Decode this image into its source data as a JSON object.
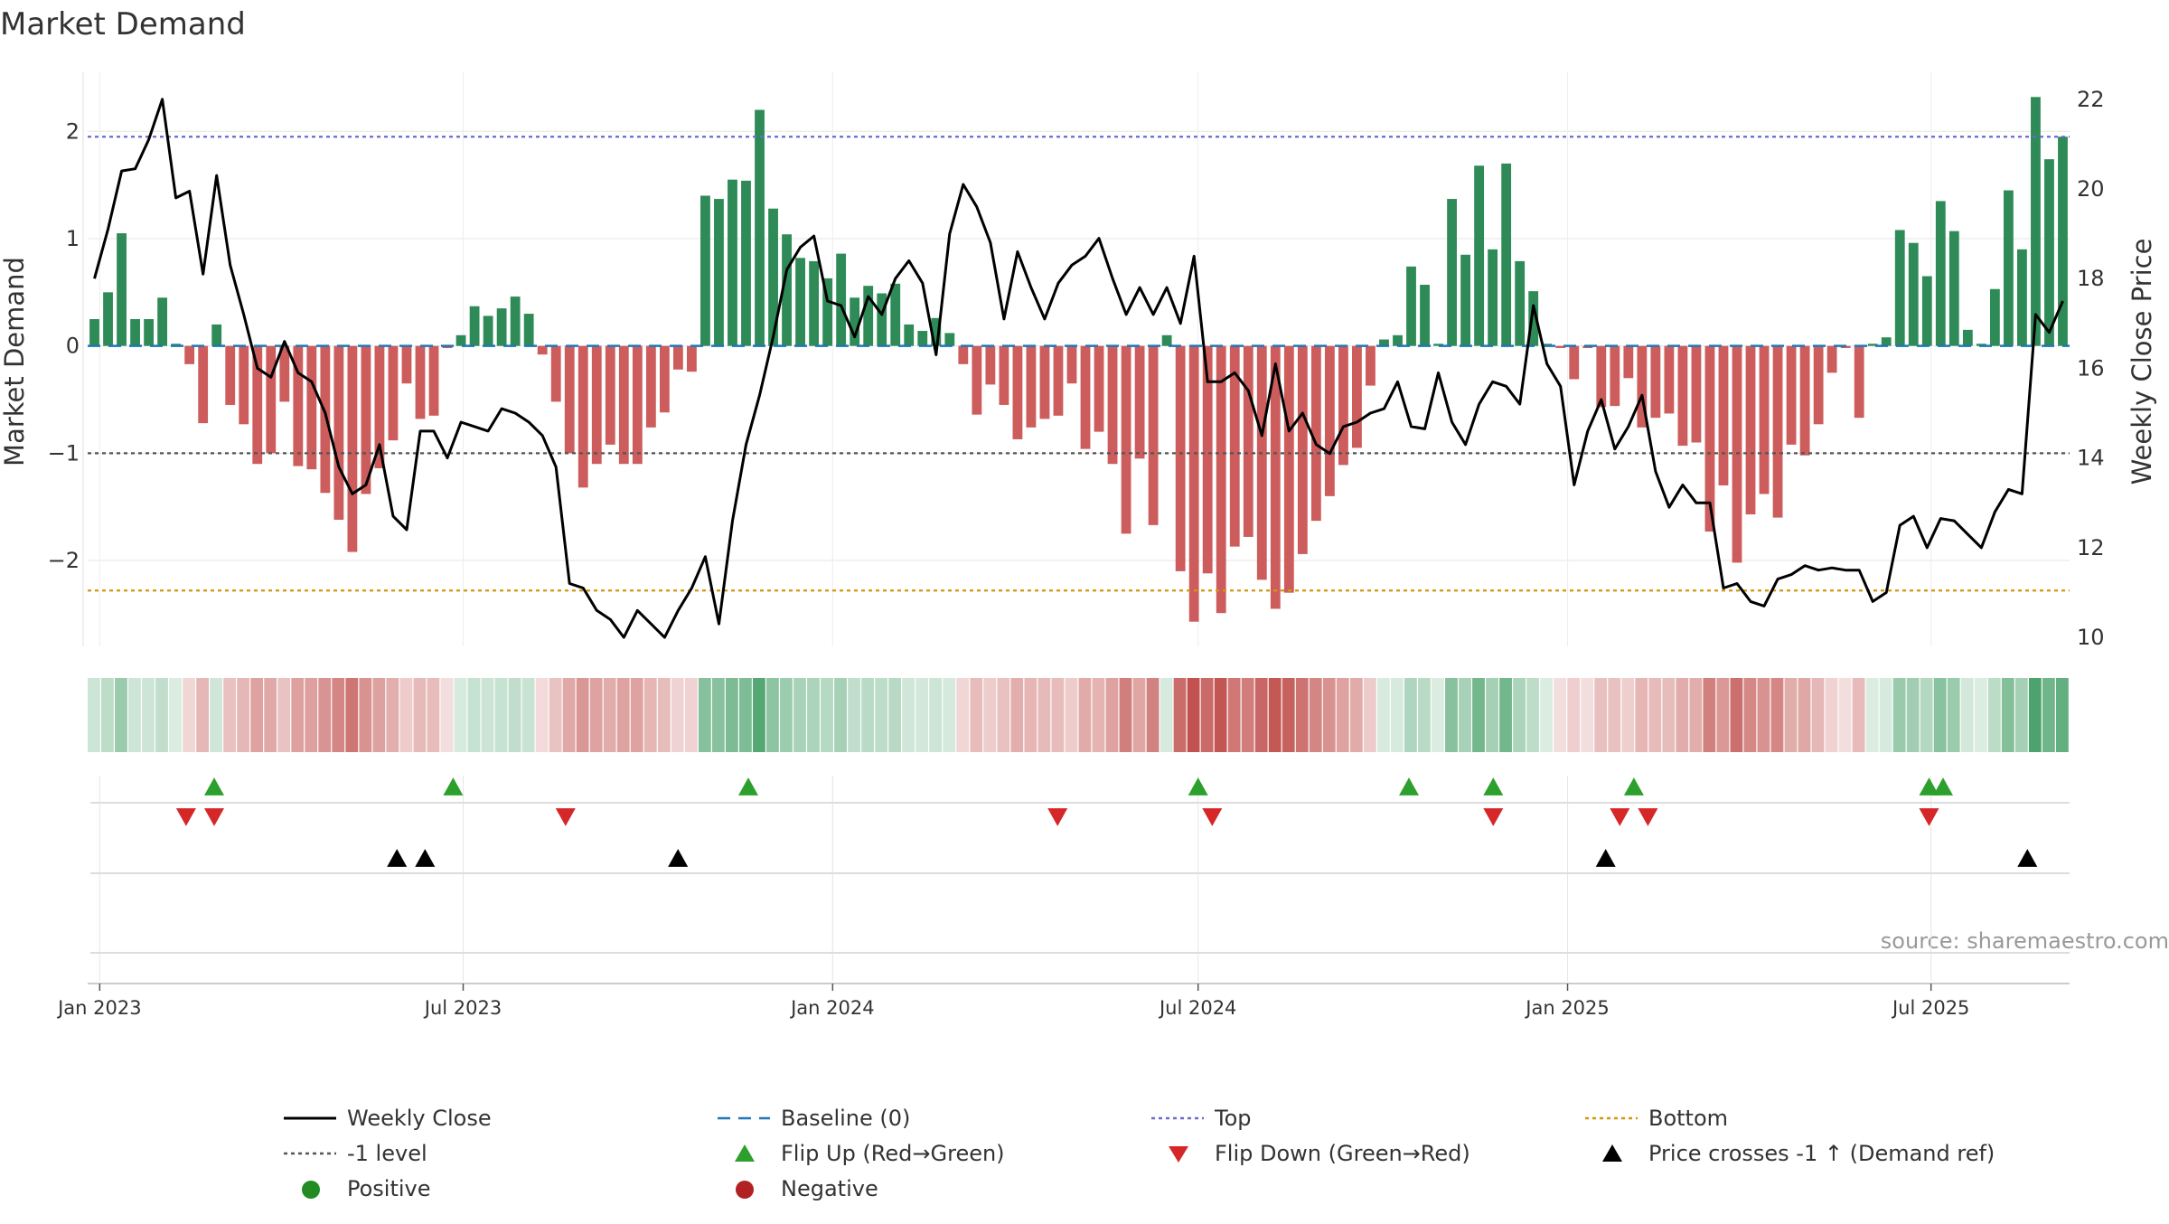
{
  "chart_data": {
    "type": "bar",
    "title": "Market Demand",
    "ylabel_left": "Market Demand",
    "ylabel_right": "Weekly Close Price",
    "source": "source: sharemaestro.com",
    "x_start": "2022-12-26",
    "x_end": "2025-09-08",
    "x_ticks": [
      {
        "date": "2023-01-01",
        "label": "Jan 2023"
      },
      {
        "date": "2023-07-01",
        "label": "Jul 2023"
      },
      {
        "date": "2024-01-01",
        "label": "Jan 2024"
      },
      {
        "date": "2024-07-01",
        "label": "Jul 2024"
      },
      {
        "date": "2025-01-01",
        "label": "Jan 2025"
      },
      {
        "date": "2025-07-01",
        "label": "Jul 2025"
      }
    ],
    "left_axis": {
      "min": -2.8,
      "max": 2.55,
      "ticks": [
        2,
        1,
        0,
        -1,
        -2
      ],
      "tick_labels": [
        "2",
        "1",
        "0",
        "−1",
        "−2"
      ]
    },
    "right_axis": {
      "min": 9.8,
      "max": 22.6,
      "ticks": [
        22,
        20,
        18,
        16,
        14,
        12,
        10
      ],
      "tick_labels": [
        "22",
        "20",
        "18",
        "16",
        "14",
        "12",
        "10"
      ]
    },
    "reference_lines": {
      "top": 1.95,
      "bottom": -2.28,
      "minus_one": -1,
      "baseline": 0
    },
    "demand": [
      0.25,
      0.5,
      1.05,
      0.25,
      0.25,
      0.45,
      0.02,
      -0.17,
      -0.72,
      0.2,
      -0.55,
      -0.73,
      -1.1,
      -1.0,
      -0.52,
      -1.12,
      -1.15,
      -1.37,
      -1.62,
      -1.92,
      -1.38,
      -1.14,
      -0.88,
      -0.35,
      -0.68,
      -0.65,
      -0.02,
      0.1,
      0.37,
      0.28,
      0.35,
      0.46,
      0.3,
      -0.08,
      -0.52,
      -1.0,
      -1.32,
      -1.1,
      -0.92,
      -1.1,
      -1.1,
      -0.76,
      -0.62,
      -0.22,
      -0.24,
      1.4,
      1.37,
      1.55,
      1.54,
      2.2,
      1.28,
      1.04,
      0.82,
      0.79,
      0.63,
      0.86,
      0.45,
      0.56,
      0.49,
      0.58,
      0.2,
      0.14,
      0.26,
      0.12,
      -0.17,
      -0.64,
      -0.36,
      -0.55,
      -0.87,
      -0.76,
      -0.68,
      -0.65,
      -0.35,
      -0.96,
      -0.8,
      -1.1,
      -1.75,
      -1.05,
      -1.67,
      0.1,
      -2.1,
      -2.57,
      -2.12,
      -2.49,
      -1.87,
      -1.78,
      -2.18,
      -2.45,
      -2.3,
      -1.94,
      -1.63,
      -1.4,
      -1.11,
      -0.95,
      -0.37,
      0.06,
      0.1,
      0.74,
      0.57,
      0.02,
      1.37,
      0.85,
      1.68,
      0.9,
      1.7,
      0.79,
      0.51,
      0.02,
      -0.02,
      -0.31,
      -0.02,
      -0.57,
      -0.56,
      -0.3,
      -0.76,
      -0.67,
      -0.63,
      -0.93,
      -0.9,
      -1.73,
      -1.3,
      -2.02,
      -1.57,
      -1.38,
      -1.6,
      -0.92,
      -1.02,
      -0.73,
      -0.25,
      -0.02,
      -0.67,
      0.02,
      0.08,
      1.08,
      0.96,
      0.65,
      1.35,
      1.07,
      0.15,
      0.02,
      0.53,
      1.45,
      0.9,
      2.32,
      1.74,
      1.95
    ],
    "weekly_close": [
      18.0,
      19.1,
      20.4,
      20.45,
      21.1,
      22.0,
      19.8,
      19.95,
      18.1,
      20.3,
      18.3,
      17.2,
      16.0,
      15.8,
      16.6,
      15.9,
      15.7,
      15.0,
      13.8,
      13.2,
      13.4,
      14.3,
      12.7,
      12.4,
      14.6,
      14.6,
      14.0,
      14.8,
      14.7,
      14.6,
      15.1,
      15.0,
      14.8,
      14.5,
      13.8,
      11.2,
      11.1,
      10.6,
      10.4,
      10.0,
      10.6,
      10.3,
      10.0,
      10.6,
      11.1,
      11.8,
      10.3,
      12.6,
      14.3,
      15.4,
      16.7,
      18.2,
      18.7,
      18.95,
      17.5,
      17.4,
      16.7,
      17.6,
      17.2,
      18.0,
      18.4,
      17.9,
      16.3,
      19.0,
      20.1,
      19.6,
      18.8,
      17.1,
      18.6,
      17.8,
      17.1,
      17.9,
      18.3,
      18.5,
      18.9,
      18.0,
      17.2,
      17.8,
      17.2,
      17.8,
      17.0,
      18.5,
      15.7,
      15.7,
      15.9,
      15.5,
      14.5,
      16.1,
      14.6,
      15.0,
      14.3,
      14.1,
      14.7,
      14.8,
      15.0,
      15.1,
      15.7,
      14.7,
      14.65,
      15.9,
      14.8,
      14.3,
      15.2,
      15.7,
      15.6,
      15.2,
      17.4,
      16.1,
      15.6,
      13.4,
      14.6,
      15.3,
      14.2,
      14.7,
      15.4,
      13.7,
      12.9,
      13.4,
      13.0,
      13.0,
      11.1,
      11.2,
      10.8,
      10.7,
      11.3,
      11.4,
      11.6,
      11.5,
      11.55,
      11.5,
      11.5,
      10.8,
      11.0,
      12.5,
      12.7,
      12.0,
      12.65,
      12.6,
      12.3,
      12.0,
      12.8,
      13.3,
      13.2,
      17.2,
      16.8,
      17.5
    ],
    "flip_up": [
      "2023-02-27",
      "2023-06-26",
      "2023-11-20",
      "2024-07-01",
      "2024-10-14",
      "2024-11-25",
      "2025-02-03",
      "2025-06-30",
      "2025-07-07"
    ],
    "flip_down": [
      "2023-02-13",
      "2023-02-27",
      "2023-08-21",
      "2024-04-22",
      "2024-07-08",
      "2024-11-25",
      "2025-01-27",
      "2025-02-10",
      "2025-06-30"
    ],
    "price_cross": [
      "2023-05-29",
      "2023-06-12",
      "2023-10-16",
      "2025-01-20",
      "2025-08-18"
    ],
    "colors": {
      "positive_bar": "#2E8B57",
      "negative_bar": "#CD5C5C",
      "weekly_close": "#000000",
      "baseline": "#1F77B4",
      "top": "#6A6AD0",
      "bottom": "#D4960F",
      "minus_one": "#555555",
      "flip_up": "#2CA02C",
      "flip_down": "#D62728",
      "price_cross": "#000000",
      "positive_dot": "#228B22",
      "negative_dot": "#B22222"
    },
    "legend": [
      {
        "label": "Weekly Close",
        "kind": "line-solid",
        "color": "#000000"
      },
      {
        "label": "Baseline (0)",
        "kind": "line-dash",
        "color": "#1F77B4"
      },
      {
        "label": "Top",
        "kind": "line-dot",
        "color": "#6A6AD0"
      },
      {
        "label": "Bottom",
        "kind": "line-dot",
        "color": "#D4960F"
      },
      {
        "label": "-1 level",
        "kind": "line-dot",
        "color": "#555555"
      },
      {
        "label": "Flip Up (Red→Green)",
        "kind": "tri-up",
        "color": "#2CA02C"
      },
      {
        "label": "Flip Down (Green→Red)",
        "kind": "tri-down",
        "color": "#D62728"
      },
      {
        "label": "Price crosses -1 ↑ (Demand ref)",
        "kind": "tri-up",
        "color": "#000000"
      },
      {
        "label": "Positive",
        "kind": "dot",
        "color": "#228B22"
      },
      {
        "label": "Negative",
        "kind": "dot",
        "color": "#B22222"
      }
    ]
  }
}
